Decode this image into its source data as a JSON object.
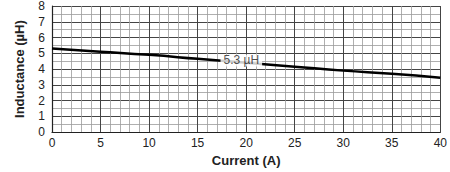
{
  "chart_data": {
    "type": "line",
    "x_label": "Current (A)",
    "y_label": "Inductance (µH)",
    "x": [
      0,
      5,
      10,
      15,
      20,
      25,
      30,
      35,
      40
    ],
    "values": [
      5.3,
      5.1,
      4.9,
      4.65,
      4.4,
      4.15,
      3.9,
      3.7,
      3.45
    ],
    "color": "#000000",
    "xlim": [
      0,
      40
    ],
    "xticks": [
      0,
      5,
      10,
      15,
      20,
      25,
      30,
      35,
      40
    ],
    "ylim": [
      0,
      8
    ],
    "yticks": [
      0,
      1,
      2,
      3,
      4,
      5,
      6,
      7,
      8
    ],
    "grid": true,
    "annotations": [
      {
        "text": "5.3 µH",
        "x": 19.5,
        "y": 4.55
      }
    ]
  }
}
